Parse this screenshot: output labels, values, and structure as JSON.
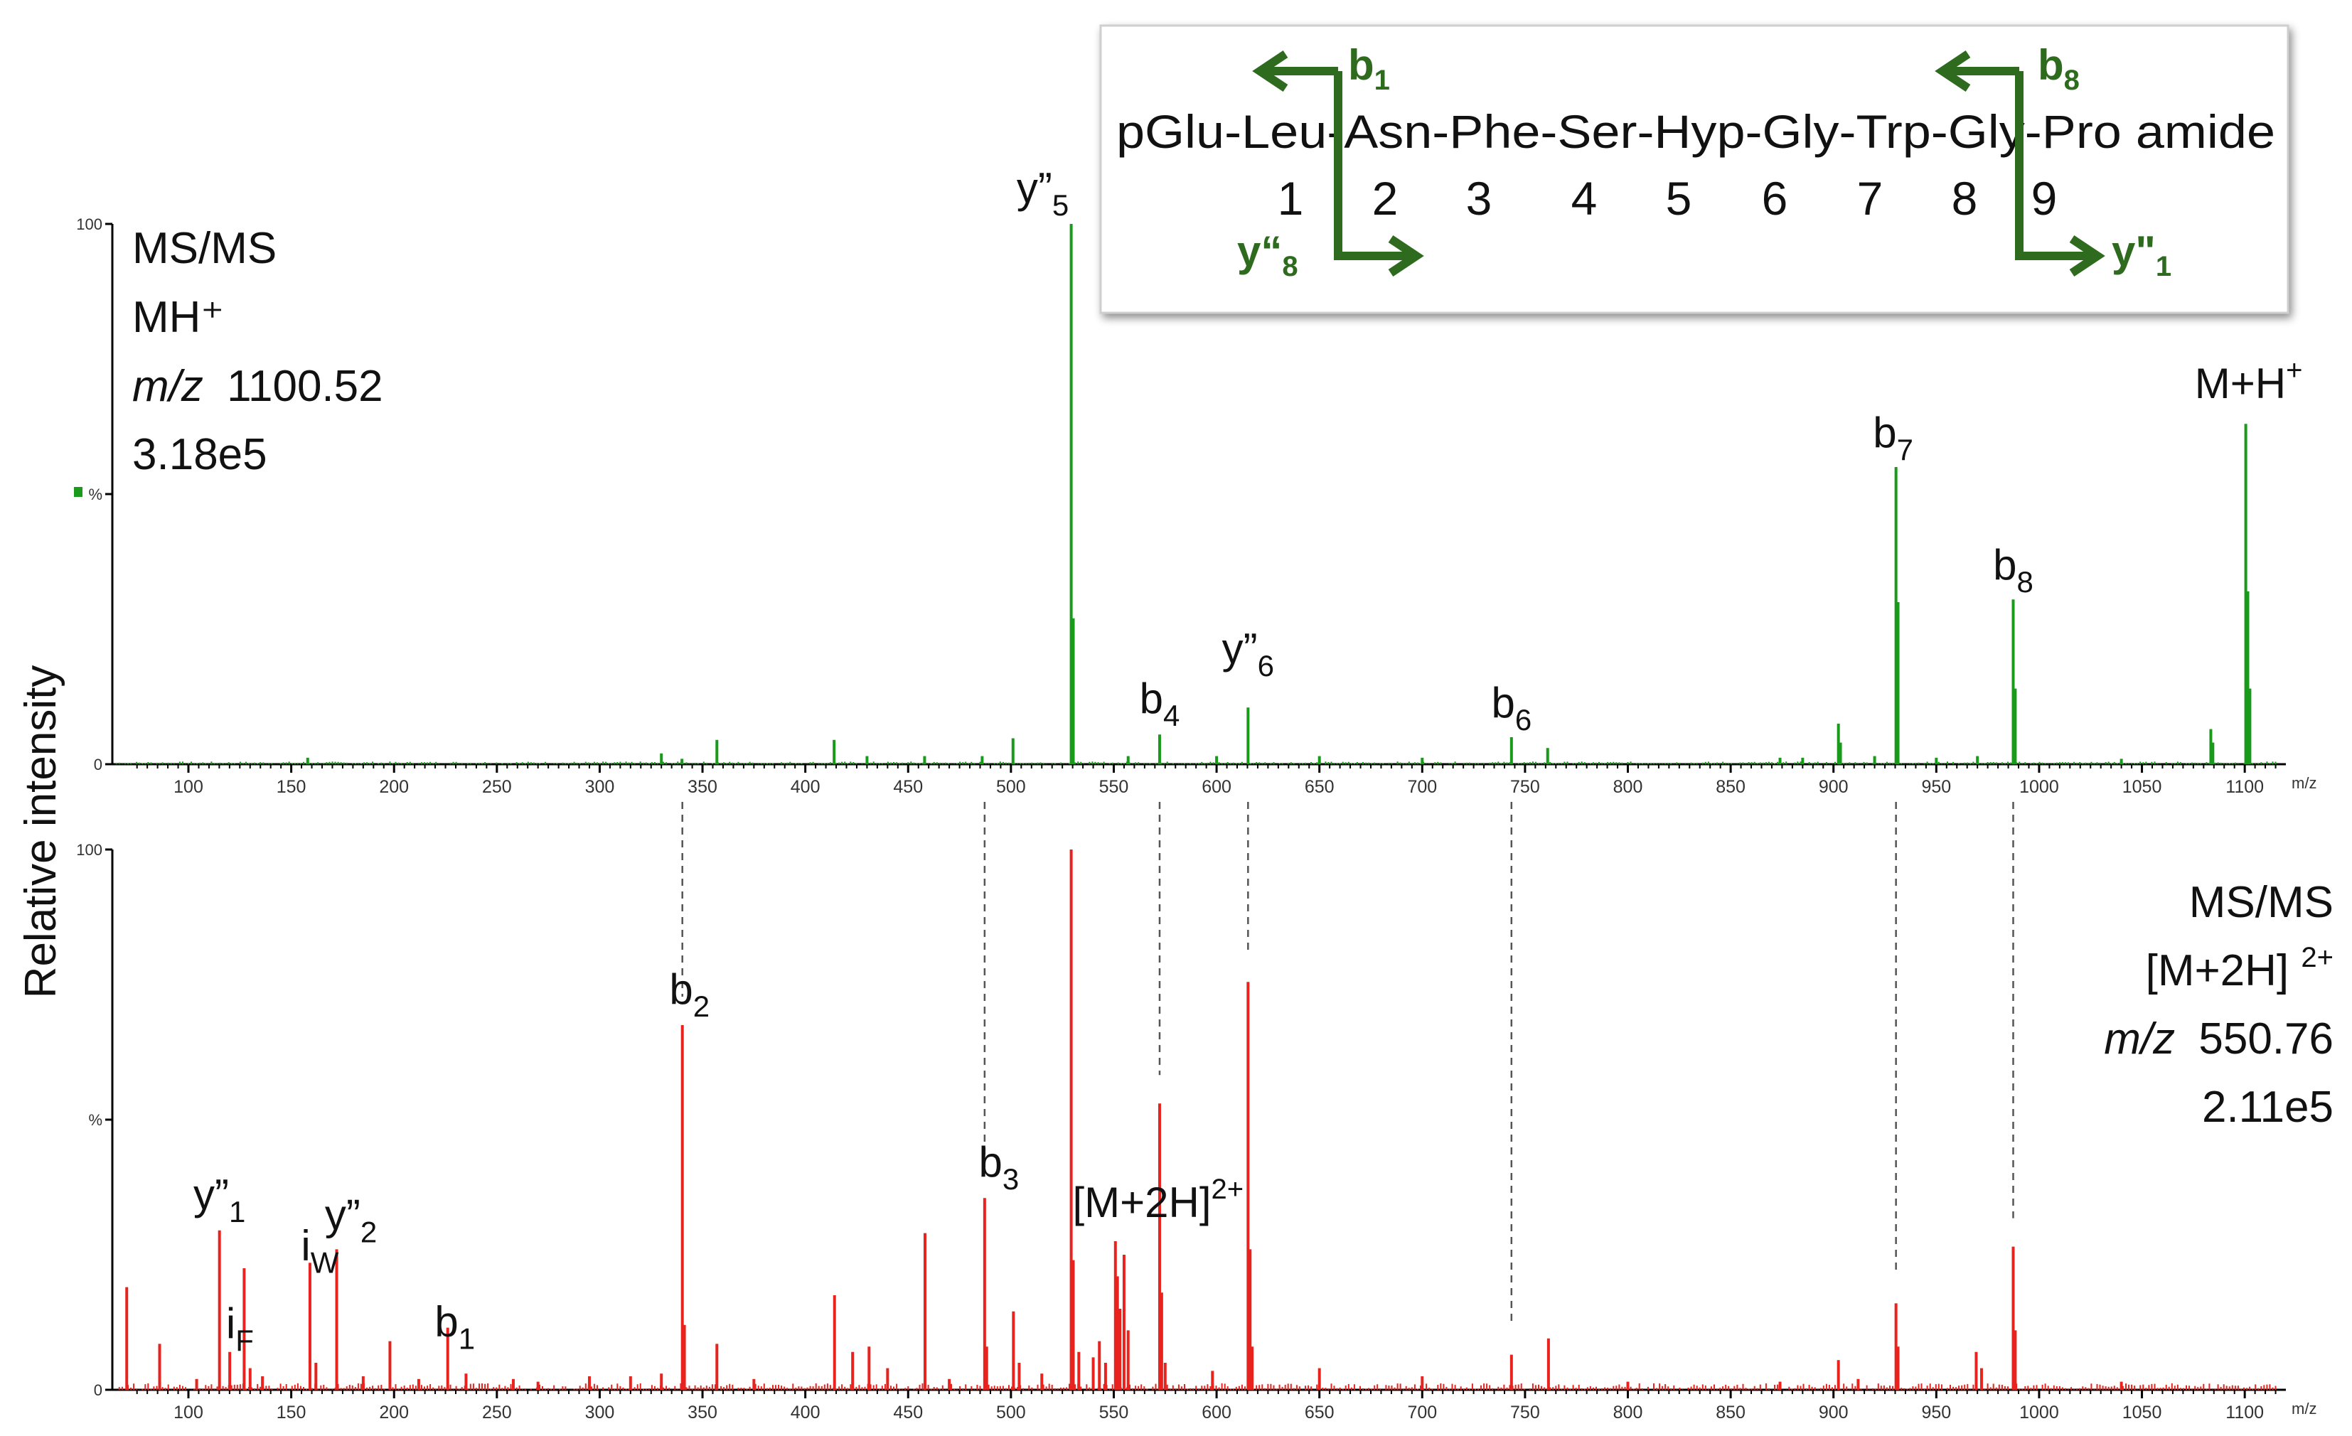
{
  "figure": {
    "ylabel": "Relative intensity",
    "sequence": {
      "text": "pGlu-Leu-Asn-Phe-Ser-Hyp-Gly-Trp-Gly-Pro amide",
      "positions": [
        "1",
        "2",
        "3",
        "4",
        "5",
        "6",
        "7",
        "8",
        "9"
      ],
      "b1": {
        "base": "b",
        "sub": "1"
      },
      "b8": {
        "base": "b",
        "sub": "8"
      },
      "y8": {
        "base": "y“",
        "sub": "8"
      },
      "y1": {
        "base": "y\"",
        "sub": "1"
      },
      "arrow_color": "#2e6b1e"
    }
  },
  "chart_data": [
    {
      "type": "bar",
      "panel": "top",
      "color": "#1a9a1a",
      "info": [
        "MS/MS",
        "MH⁺",
        "1100.52",
        "3.18e5"
      ],
      "info_mz_prefix": "m/z",
      "xunit": "m/z",
      "xlim": [
        63,
        1120
      ],
      "ylim": [
        0,
        100
      ],
      "yticks": [
        "100",
        "%",
        "0"
      ],
      "xticks": [
        100,
        150,
        200,
        250,
        300,
        350,
        400,
        450,
        500,
        550,
        600,
        650,
        700,
        750,
        800,
        850,
        900,
        950,
        1000,
        1050,
        1100
      ],
      "peaks": [
        {
          "x": 158,
          "y": 1.2
        },
        {
          "x": 330,
          "y": 2
        },
        {
          "x": 340,
          "y": 1
        },
        {
          "x": 357,
          "y": 4.5
        },
        {
          "x": 414,
          "y": 4.5
        },
        {
          "x": 430,
          "y": 1.5
        },
        {
          "x": 458,
          "y": 1.5
        },
        {
          "x": 486,
          "y": 1.5
        },
        {
          "x": 501,
          "y": 4.8
        },
        {
          "x": 529.3,
          "y": 100
        },
        {
          "x": 530.3,
          "y": 27
        },
        {
          "x": 557,
          "y": 1.5
        },
        {
          "x": 572.3,
          "y": 5.5
        },
        {
          "x": 600,
          "y": 1.5
        },
        {
          "x": 615.3,
          "y": 10.5
        },
        {
          "x": 650,
          "y": 1.5
        },
        {
          "x": 700,
          "y": 1.2
        },
        {
          "x": 743.4,
          "y": 5
        },
        {
          "x": 761,
          "y": 3
        },
        {
          "x": 874,
          "y": 1.2
        },
        {
          "x": 885,
          "y": 1.2
        },
        {
          "x": 902.4,
          "y": 7.5
        },
        {
          "x": 903.4,
          "y": 4
        },
        {
          "x": 920,
          "y": 1.5
        },
        {
          "x": 930.4,
          "y": 55
        },
        {
          "x": 931.4,
          "y": 30
        },
        {
          "x": 950,
          "y": 1.2
        },
        {
          "x": 970,
          "y": 1.5
        },
        {
          "x": 987.4,
          "y": 30.5
        },
        {
          "x": 988.4,
          "y": 14
        },
        {
          "x": 1040,
          "y": 1
        },
        {
          "x": 1083.5,
          "y": 6.5
        },
        {
          "x": 1084.5,
          "y": 4
        },
        {
          "x": 1100.5,
          "y": 63
        },
        {
          "x": 1101.5,
          "y": 32
        },
        {
          "x": 1102.5,
          "y": 14
        }
      ],
      "labels": [
        {
          "x": 529.3,
          "y": 100,
          "base": "y”",
          "sub": "5",
          "sup": ""
        },
        {
          "x": 572.3,
          "y": 5.5,
          "base": "b",
          "sub": "4",
          "sup": ""
        },
        {
          "x": 615.3,
          "y": 10.5,
          "base": "y”",
          "sub": "6",
          "sup": ""
        },
        {
          "x": 743.4,
          "y": 5,
          "base": "b",
          "sub": "6",
          "sup": ""
        },
        {
          "x": 930.4,
          "y": 55,
          "base": "b",
          "sub": "7",
          "sup": ""
        },
        {
          "x": 987.4,
          "y": 30.5,
          "base": "b",
          "sub": "8",
          "sup": ""
        },
        {
          "x": 1100.5,
          "y": 63,
          "base": "M+H",
          "sub": "",
          "sup": "+"
        }
      ]
    },
    {
      "type": "bar",
      "panel": "bottom",
      "color": "#e8231e",
      "info": [
        "MS/MS",
        "[M+2H]",
        "2+",
        "550.76",
        "2.11e5"
      ],
      "info_mz_prefix": "m/z",
      "xunit": "m/z",
      "xlim": [
        63,
        1120
      ],
      "ylim": [
        0,
        100
      ],
      "yticks": [
        "100",
        "%",
        "0"
      ],
      "xticks": [
        100,
        150,
        200,
        250,
        300,
        350,
        400,
        450,
        500,
        550,
        600,
        650,
        700,
        750,
        800,
        850,
        900,
        950,
        1000,
        1050,
        1100
      ],
      "peaks": [
        {
          "x": 70,
          "y": 19
        },
        {
          "x": 86,
          "y": 8.5
        },
        {
          "x": 104,
          "y": 2
        },
        {
          "x": 115.1,
          "y": 29.5
        },
        {
          "x": 120.1,
          "y": 7
        },
        {
          "x": 127.1,
          "y": 22.5
        },
        {
          "x": 130,
          "y": 4
        },
        {
          "x": 136,
          "y": 2.5
        },
        {
          "x": 159.1,
          "y": 23.5
        },
        {
          "x": 162,
          "y": 5
        },
        {
          "x": 172.1,
          "y": 26
        },
        {
          "x": 185,
          "y": 2.5
        },
        {
          "x": 198,
          "y": 9
        },
        {
          "x": 212,
          "y": 2
        },
        {
          "x": 226.1,
          "y": 11.5
        },
        {
          "x": 235,
          "y": 3
        },
        {
          "x": 258,
          "y": 2
        },
        {
          "x": 270,
          "y": 1.5
        },
        {
          "x": 295,
          "y": 2.5
        },
        {
          "x": 315,
          "y": 2.5
        },
        {
          "x": 330,
          "y": 3
        },
        {
          "x": 340.2,
          "y": 67.5
        },
        {
          "x": 341.2,
          "y": 12
        },
        {
          "x": 357,
          "y": 8.5
        },
        {
          "x": 375,
          "y": 2
        },
        {
          "x": 414.2,
          "y": 17.5
        },
        {
          "x": 423,
          "y": 7
        },
        {
          "x": 431,
          "y": 8
        },
        {
          "x": 440,
          "y": 4
        },
        {
          "x": 458.2,
          "y": 29
        },
        {
          "x": 470,
          "y": 2
        },
        {
          "x": 487.2,
          "y": 35.5
        },
        {
          "x": 488.2,
          "y": 8
        },
        {
          "x": 501.2,
          "y": 14.5
        },
        {
          "x": 504,
          "y": 5
        },
        {
          "x": 515,
          "y": 3
        },
        {
          "x": 529.3,
          "y": 100
        },
        {
          "x": 530.3,
          "y": 24
        },
        {
          "x": 533,
          "y": 7
        },
        {
          "x": 540,
          "y": 6
        },
        {
          "x": 543,
          "y": 9
        },
        {
          "x": 546,
          "y": 5
        },
        {
          "x": 550.8,
          "y": 27.5
        },
        {
          "x": 551.8,
          "y": 21
        },
        {
          "x": 553,
          "y": 15
        },
        {
          "x": 555,
          "y": 25
        },
        {
          "x": 557,
          "y": 11
        },
        {
          "x": 572.3,
          "y": 53
        },
        {
          "x": 573.3,
          "y": 18
        },
        {
          "x": 575,
          "y": 5
        },
        {
          "x": 598,
          "y": 3.5
        },
        {
          "x": 615.3,
          "y": 75.5
        },
        {
          "x": 616.3,
          "y": 26
        },
        {
          "x": 617.3,
          "y": 8
        },
        {
          "x": 650,
          "y": 4
        },
        {
          "x": 700,
          "y": 2.5
        },
        {
          "x": 743.4,
          "y": 6.5
        },
        {
          "x": 761.4,
          "y": 9.5
        },
        {
          "x": 800,
          "y": 1.5
        },
        {
          "x": 874,
          "y": 1.5
        },
        {
          "x": 902.4,
          "y": 5.5
        },
        {
          "x": 912,
          "y": 2
        },
        {
          "x": 930.4,
          "y": 16
        },
        {
          "x": 931.4,
          "y": 8
        },
        {
          "x": 969.4,
          "y": 7
        },
        {
          "x": 972,
          "y": 4
        },
        {
          "x": 987.4,
          "y": 26.5
        },
        {
          "x": 988.4,
          "y": 11
        },
        {
          "x": 1040,
          "y": 1.5
        }
      ],
      "labels": [
        {
          "x": 115.1,
          "y": 29.5,
          "base": "y”",
          "sub": "1",
          "sup": ""
        },
        {
          "x": 127.1,
          "y": 22.5,
          "base": "i",
          "sub": "F",
          "sup": ""
        },
        {
          "x": 159.1,
          "y": 23.5,
          "base": "i",
          "sub": "W",
          "sup": ""
        },
        {
          "x": 172.1,
          "y": 26,
          "base": "y”",
          "sub": "2",
          "sup": ""
        },
        {
          "x": 226.1,
          "y": 11.5,
          "base": "b",
          "sub": "1",
          "sup": ""
        },
        {
          "x": 340.2,
          "y": 67.5,
          "base": "b",
          "sub": "2",
          "sup": ""
        },
        {
          "x": 487.2,
          "y": 35.5,
          "base": "b",
          "sub": "3",
          "sup": ""
        },
        {
          "x": 550.8,
          "y": 27.5,
          "base": "[M+2H]",
          "sub": "",
          "sup": "2+"
        }
      ],
      "connectors": [
        340.2,
        487.2,
        572.3,
        615.3,
        743.4,
        930.4,
        987.4
      ]
    }
  ]
}
